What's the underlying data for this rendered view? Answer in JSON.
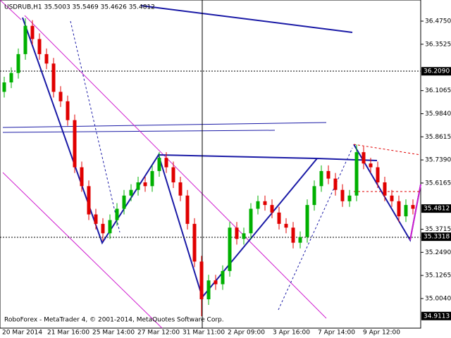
{
  "chart_data": {
    "type": "candlestick",
    "title": "USDRUB,H1  35.5003 35.5469 35.4626 35.4812",
    "footer": "RoboForex - MetaTrader 4, © 2001-2014, MetaQuotes Software Corp.",
    "x_labels": [
      "20 Mar 2014",
      "21 Mar 16:00",
      "25 Mar 14:00",
      "27 Mar 12:00",
      "31 Mar 11:00",
      "2 Apr 09:00",
      "3 Apr 16:00",
      "7 Apr 14:00",
      "9 Apr 12:00"
    ],
    "up_color": "#00b000",
    "down_color": "#e00000",
    "open": [
      36.1,
      36.15,
      36.2,
      36.3,
      36.45,
      36.38,
      36.3,
      36.25,
      36.1,
      36.05,
      35.95,
      35.7,
      35.6,
      35.45,
      35.4,
      35.35,
      35.42,
      35.48,
      35.55,
      35.58,
      35.62,
      35.6,
      35.68,
      35.75,
      35.7,
      35.62,
      35.55,
      35.4,
      35.2,
      35.0,
      35.1,
      35.08,
      35.15,
      35.38,
      35.32,
      35.35,
      35.48,
      35.52,
      35.5,
      35.46,
      35.4,
      35.38,
      35.3,
      35.33,
      35.5,
      35.6,
      35.68,
      35.64,
      35.58,
      35.52,
      35.55,
      35.78,
      35.72,
      35.7,
      35.62,
      35.55,
      35.52,
      35.44,
      35.5
    ],
    "high": [
      36.18,
      36.23,
      36.33,
      36.49,
      36.48,
      36.41,
      36.33,
      36.28,
      36.13,
      36.08,
      35.98,
      35.73,
      35.63,
      35.48,
      35.43,
      35.45,
      35.51,
      35.58,
      35.61,
      35.65,
      35.65,
      35.71,
      35.78,
      35.78,
      35.73,
      35.65,
      35.58,
      35.43,
      35.23,
      35.13,
      35.13,
      35.18,
      35.41,
      35.41,
      35.38,
      35.51,
      35.55,
      35.55,
      35.53,
      35.49,
      35.43,
      35.41,
      35.36,
      35.53,
      35.63,
      35.71,
      35.71,
      35.67,
      35.61,
      35.58,
      35.82,
      35.81,
      35.75,
      35.73,
      35.65,
      35.58,
      35.55,
      35.53,
      35.53
    ],
    "low": [
      36.07,
      36.12,
      36.17,
      36.27,
      36.35,
      36.27,
      36.22,
      36.07,
      36.02,
      35.92,
      35.67,
      35.57,
      35.42,
      35.37,
      35.31,
      35.32,
      35.39,
      35.45,
      35.52,
      35.55,
      35.57,
      35.57,
      35.65,
      35.67,
      35.59,
      35.52,
      35.37,
      35.17,
      34.91,
      34.97,
      35.05,
      35.05,
      35.12,
      35.29,
      35.29,
      35.32,
      35.45,
      35.47,
      35.43,
      35.37,
      35.35,
      35.27,
      35.27,
      35.3,
      35.47,
      35.57,
      35.61,
      35.55,
      35.49,
      35.49,
      35.52,
      35.69,
      35.67,
      35.59,
      35.52,
      35.49,
      35.41,
      35.41,
      35.45
    ],
    "close": [
      36.15,
      36.2,
      36.3,
      36.45,
      36.38,
      36.3,
      36.25,
      36.1,
      36.05,
      35.95,
      35.7,
      35.6,
      35.45,
      35.4,
      35.35,
      35.42,
      35.48,
      35.55,
      35.58,
      35.62,
      35.6,
      35.68,
      35.75,
      35.7,
      35.62,
      35.55,
      35.4,
      35.2,
      35.0,
      35.1,
      35.08,
      35.15,
      35.38,
      35.32,
      35.35,
      35.48,
      35.52,
      35.5,
      35.46,
      35.4,
      35.38,
      35.3,
      35.33,
      35.5,
      35.6,
      35.68,
      35.64,
      35.58,
      35.52,
      35.55,
      35.78,
      35.72,
      35.7,
      35.62,
      35.55,
      35.52,
      35.44,
      35.5,
      35.48
    ],
    "ylim": [
      34.847,
      36.587
    ],
    "yticks": [
      {
        "value": 36.475,
        "label": "36.4750"
      },
      {
        "value": 36.3525,
        "label": "36.3525"
      },
      {
        "value": 36.1065,
        "label": "36.1065"
      },
      {
        "value": 35.984,
        "label": "35.9840"
      },
      {
        "value": 35.8615,
        "label": "35.8615"
      },
      {
        "value": 35.739,
        "label": "35.7390"
      },
      {
        "value": 35.6165,
        "label": "35.6165"
      },
      {
        "value": 35.3715,
        "label": "35.3715"
      },
      {
        "value": 35.249,
        "label": "35.2490"
      },
      {
        "value": 35.1265,
        "label": "35.1265"
      },
      {
        "value": 35.004,
        "label": "35.0040"
      }
    ],
    "price_labels": [
      {
        "value": 36.209,
        "label": "36.2090"
      },
      {
        "value": 35.4812,
        "label": "35.4812"
      },
      {
        "value": 35.3318,
        "label": "35.3318"
      },
      {
        "value": 34.9113,
        "label": "34.9113"
      }
    ]
  }
}
